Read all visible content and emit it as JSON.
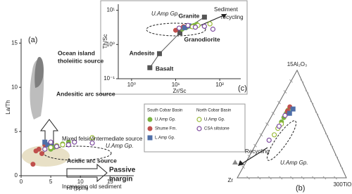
{
  "chart_data": [
    {
      "type": "scatter",
      "xlabel": "Hf (ppm)",
      "ylabel": "La/Th",
      "xlim": [
        0,
        19
      ],
      "ylim": [
        0,
        15.5
      ],
      "xticks": [
        0,
        5,
        10,
        15
      ],
      "yticks": [
        0,
        5,
        10,
        15
      ],
      "series": [
        {
          "name": "U.Amp Gp.",
          "color": "#7cb342",
          "marker": "circle",
          "filled": true,
          "x": [
            4,
            5,
            5.5,
            6,
            7,
            8
          ],
          "y": [
            3.5,
            3,
            3.2,
            3.4,
            3.6,
            3.8
          ]
        },
        {
          "name": "Shume Fm.",
          "color": "#c0504d",
          "marker": "circle",
          "filled": true,
          "x": [
            2,
            3,
            4,
            2.5,
            3.5
          ],
          "y": [
            1.3,
            3,
            3.5,
            2.8,
            2.5
          ]
        },
        {
          "name": "L.Amp Gp.",
          "color": "#4f6fa8",
          "marker": "square",
          "filled": true,
          "x": [
            4,
            4.5,
            5
          ],
          "y": [
            3.8,
            3.5,
            3.3
          ]
        },
        {
          "name": "U.Amp Gp.",
          "color": "#9bbb3a",
          "marker": "circle",
          "filled": false,
          "x": [
            5,
            6,
            7,
            12
          ],
          "y": [
            3.2,
            3.4,
            3.5,
            4.3
          ]
        },
        {
          "name": "CSA siltstone",
          "color": "#7d4b9e",
          "marker": "circle",
          "filled": false,
          "x": [
            4,
            5,
            6,
            8,
            9,
            12
          ],
          "y": [
            3,
            3.8,
            3.3,
            3.5,
            3.8,
            3.7
          ]
        }
      ],
      "annotations": [
        "(a)",
        "Ocean island",
        "tholeiitic source",
        "Andesitic arc source",
        "Mixed felsic/intermediate source",
        "U.Amp Gp.",
        "Acidic arc source",
        "Increasing old sediment",
        "Passive",
        "margin"
      ],
      "legend": {
        "groups": [
          {
            "title": "South Cobar Basin",
            "series": [
              0,
              1,
              2
            ]
          },
          {
            "title": "North Cobar Basin",
            "series": [
              3,
              4
            ]
          }
        ]
      }
    },
    {
      "type": "scatter",
      "xlabel": "Zr/Sc",
      "ylabel": "Th/Sc",
      "xlog": true,
      "ylog": true,
      "xlim": [
        0.5,
        300
      ],
      "ylim": [
        0.1,
        15
      ],
      "xticks": [
        {
          "value": 1,
          "label": "10⁰"
        },
        {
          "value": 10,
          "label": "10¹"
        },
        {
          "value": 100,
          "label": "10²"
        }
      ],
      "yticks": [
        {
          "value": 0.1,
          "label": "10⁻¹"
        },
        {
          "value": 1,
          "label": "10⁰"
        },
        {
          "value": 10,
          "label": "10¹"
        }
      ],
      "reference": {
        "names": [
          "Basalt",
          "Andesite",
          "Granodiorite",
          "Granite"
        ],
        "x": [
          2.6,
          4.3,
          12.5,
          45
        ],
        "y": [
          0.21,
          0.54,
          2.2,
          6.3
        ],
        "color": "#555555"
      },
      "series": [
        {
          "color": "#7cb342",
          "marker": "circle",
          "filled": true,
          "x": [
            14,
            18,
            22,
            26,
            30
          ],
          "y": [
            2.8,
            3.2,
            3.4,
            3.6,
            3.9
          ]
        },
        {
          "color": "#c0504d",
          "marker": "circle",
          "filled": true,
          "x": [
            10,
            12,
            15
          ],
          "y": [
            2.6,
            3.0,
            3.3
          ]
        },
        {
          "color": "#4f6fa8",
          "marker": "square",
          "filled": true,
          "x": [
            16,
            20
          ],
          "y": [
            3.1,
            3.5
          ]
        },
        {
          "color": "#9bbb3a",
          "marker": "circle",
          "filled": false,
          "x": [
            24,
            32,
            60
          ],
          "y": [
            3.3,
            3.6,
            4.0
          ]
        },
        {
          "color": "#7d4b9e",
          "marker": "circle",
          "filled": false,
          "x": [
            12,
            19,
            28,
            45,
            70
          ],
          "y": [
            3.0,
            3.6,
            3.2,
            3.4,
            2.8
          ]
        }
      ],
      "annotations": [
        "U.Amp Gp.",
        "Sediment",
        "recycling",
        "(c)"
      ]
    },
    {
      "type": "ternary",
      "apex_labels": [
        "15Al₂O₃",
        "Zr",
        "300TiO₂"
      ],
      "series": [
        {
          "color": "#7cb342",
          "marker": "circle",
          "filled": true,
          "al": [
            52,
            56,
            60,
            63
          ],
          "zr": [
            36,
            32,
            28,
            25
          ],
          "ti": [
            12,
            12,
            12,
            12
          ]
        },
        {
          "color": "#c0504d",
          "marker": "circle",
          "filled": true,
          "al": [
            66,
            62
          ],
          "zr": [
            22,
            26
          ],
          "ti": [
            12,
            12
          ]
        },
        {
          "color": "#4f6fa8",
          "marker": "square",
          "filled": true,
          "al": [
            64,
            60
          ],
          "zr": [
            20,
            25
          ],
          "ti": [
            16,
            15
          ]
        },
        {
          "color": "#9bbb3a",
          "marker": "circle",
          "filled": false,
          "al": [
            40,
            46,
            50
          ],
          "zr": [
            48,
            42,
            37
          ],
          "ti": [
            12,
            12,
            13
          ]
        },
        {
          "color": "#7d4b9e",
          "marker": "circle",
          "filled": false,
          "al": [
            35,
            48,
            58
          ],
          "zr": [
            55,
            40,
            30
          ],
          "ti": [
            10,
            12,
            12
          ]
        }
      ],
      "annotations": [
        "Recycling",
        "U.Amp Gp.",
        "(b)"
      ]
    }
  ]
}
